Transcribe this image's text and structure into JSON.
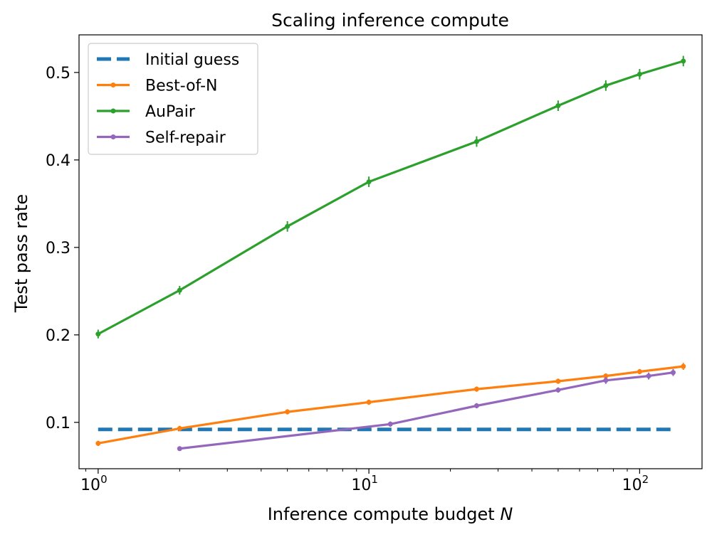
{
  "chart_data": {
    "type": "line",
    "title": "Scaling inference compute",
    "xlabel_prefix": "Inference compute budget ",
    "xlabel_var": "N",
    "ylabel": "Test pass rate",
    "xscale": "log",
    "xlim": [
      0.85,
      170
    ],
    "ylim": [
      0.047,
      0.543
    ],
    "xticks": [
      {
        "value": 1,
        "base": "10",
        "exp": "0"
      },
      {
        "value": 10,
        "base": "10",
        "exp": "1"
      },
      {
        "value": 100,
        "base": "10",
        "exp": "2"
      }
    ],
    "yticks": [
      {
        "value": 0.1,
        "label": "0.1"
      },
      {
        "value": 0.2,
        "label": "0.2"
      },
      {
        "value": 0.3,
        "label": "0.3"
      },
      {
        "value": 0.4,
        "label": "0.4"
      },
      {
        "value": 0.5,
        "label": "0.5"
      }
    ],
    "legend_position": "top-left",
    "series": [
      {
        "name": "Initial guess",
        "key": "initial-guess",
        "color": "#1f77b4",
        "style": "dashed",
        "points": [
          [
            1,
            0.092
          ],
          [
            130,
            0.092
          ]
        ]
      },
      {
        "name": "Best-of-N",
        "key": "best-of-n",
        "color": "#ff7f0e",
        "style": "solid",
        "points": [
          [
            1,
            0.076
          ],
          [
            2,
            0.093
          ],
          [
            5,
            0.112
          ],
          [
            10,
            0.123
          ],
          [
            25,
            0.138
          ],
          [
            50,
            0.147
          ],
          [
            75,
            0.153
          ],
          [
            100,
            0.158
          ],
          [
            145,
            0.164
          ]
        ],
        "errors": [
          0.003,
          0.003,
          0.003,
          0.003,
          0.003,
          0.003,
          0.003,
          0.003,
          0.004
        ]
      },
      {
        "name": "AuPair",
        "key": "aupair",
        "color": "#2ca02c",
        "style": "solid",
        "points": [
          [
            1,
            0.201
          ],
          [
            2,
            0.251
          ],
          [
            5,
            0.324
          ],
          [
            10,
            0.375
          ],
          [
            25,
            0.421
          ],
          [
            50,
            0.462
          ],
          [
            75,
            0.485
          ],
          [
            100,
            0.498
          ],
          [
            145,
            0.513
          ]
        ],
        "errors": [
          0.005,
          0.005,
          0.006,
          0.006,
          0.006,
          0.006,
          0.006,
          0.006,
          0.006
        ]
      },
      {
        "name": "Self-repair",
        "key": "self-repair",
        "color": "#9467bd",
        "style": "solid",
        "points": [
          [
            2,
            0.07
          ],
          [
            12,
            0.098
          ],
          [
            25,
            0.119
          ],
          [
            50,
            0.137
          ],
          [
            75,
            0.148
          ],
          [
            108,
            0.153
          ],
          [
            133,
            0.157
          ]
        ],
        "errors": [
          0.002,
          0.003,
          0.003,
          0.003,
          0.004,
          0.004,
          0.004
        ]
      }
    ]
  }
}
